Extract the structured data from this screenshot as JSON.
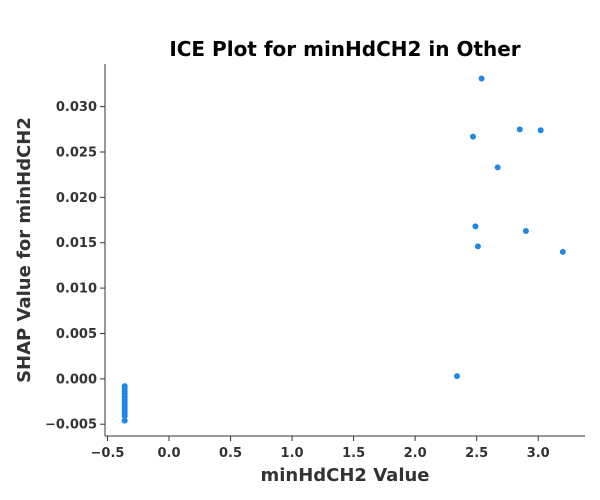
{
  "chart_data": {
    "type": "scatter",
    "title": "ICE Plot for minHdCH2 in Other",
    "xlabel": "minHdCH2 Value",
    "ylabel": "SHAP Value for minHdCH2",
    "xlim": [
      -0.52,
      3.38
    ],
    "ylim": [
      -0.0063,
      0.0347
    ],
    "x_ticks": [
      -0.5,
      0.0,
      0.5,
      1.0,
      1.5,
      2.0,
      2.5,
      3.0
    ],
    "x_tick_labels": [
      "−0.5",
      "0.0",
      "0.5",
      "1.0",
      "1.5",
      "2.0",
      "2.5",
      "3.0"
    ],
    "y_ticks": [
      -0.005,
      0.0,
      0.005,
      0.01,
      0.015,
      0.02,
      0.025,
      0.03
    ],
    "y_tick_labels": [
      "−0.005",
      "0.000",
      "0.005",
      "0.010",
      "0.015",
      "0.020",
      "0.025",
      "0.030"
    ],
    "grid": false,
    "point_color": "#1f88e5",
    "points": [
      [
        -0.36,
        -0.0008
      ],
      [
        -0.36,
        -0.0011
      ],
      [
        -0.36,
        -0.0014
      ],
      [
        -0.36,
        -0.0017
      ],
      [
        -0.36,
        -0.002
      ],
      [
        -0.36,
        -0.0023
      ],
      [
        -0.36,
        -0.0026
      ],
      [
        -0.36,
        -0.0029
      ],
      [
        -0.36,
        -0.0032
      ],
      [
        -0.36,
        -0.0035
      ],
      [
        -0.36,
        -0.0038
      ],
      [
        -0.36,
        -0.0041
      ],
      [
        -0.36,
        -0.0046
      ],
      [
        2.34,
        0.0003
      ],
      [
        2.47,
        0.0267
      ],
      [
        2.49,
        0.0168
      ],
      [
        2.51,
        0.0146
      ],
      [
        2.54,
        0.0331
      ],
      [
        2.67,
        0.0233
      ],
      [
        2.85,
        0.0275
      ],
      [
        2.9,
        0.0163
      ],
      [
        3.02,
        0.0274
      ],
      [
        3.2,
        0.014
      ]
    ]
  }
}
